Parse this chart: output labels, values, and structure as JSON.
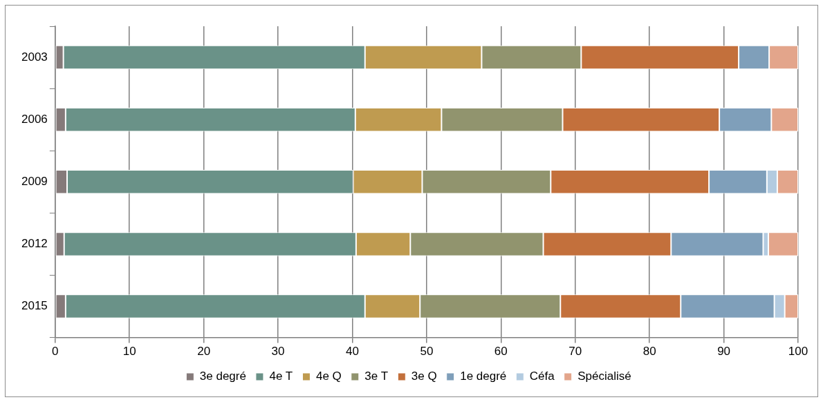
{
  "chart_data": {
    "type": "bar",
    "orientation": "horizontal",
    "stacked": true,
    "categories": [
      "2003",
      "2006",
      "2009",
      "2012",
      "2015"
    ],
    "series": [
      {
        "name": "3e degré",
        "color": "#857a7a",
        "values": [
          1.1,
          1.4,
          1.6,
          1.2,
          1.4
        ]
      },
      {
        "name": "4e T",
        "color": "#6a9288",
        "values": [
          40.6,
          39.0,
          38.5,
          39.3,
          40.3
        ]
      },
      {
        "name": "4e Q",
        "color": "#bf9b50",
        "values": [
          15.7,
          11.6,
          9.3,
          7.3,
          7.4
        ]
      },
      {
        "name": "3e T",
        "color": "#91946e",
        "values": [
          13.4,
          16.3,
          17.3,
          17.9,
          18.9
        ]
      },
      {
        "name": "3e Q",
        "color": "#c3703c",
        "values": [
          21.2,
          21.1,
          21.3,
          17.2,
          16.2
        ]
      },
      {
        "name": "1e degré",
        "color": "#7f9fba",
        "values": [
          4.1,
          7.0,
          7.8,
          12.4,
          12.6
        ]
      },
      {
        "name": "Céfa",
        "color": "#b3cbe0",
        "values": [
          0,
          0,
          1.4,
          0.7,
          1.4
        ]
      },
      {
        "name": "Spécialisé",
        "color": "#e3a58b",
        "values": [
          3.9,
          3.6,
          2.8,
          4.0,
          1.8
        ]
      }
    ],
    "xlim": [
      0,
      100
    ],
    "xticks": [
      0,
      10,
      20,
      30,
      40,
      50,
      60,
      70,
      80,
      90,
      100
    ],
    "grid": "x",
    "legend": "bottom"
  }
}
